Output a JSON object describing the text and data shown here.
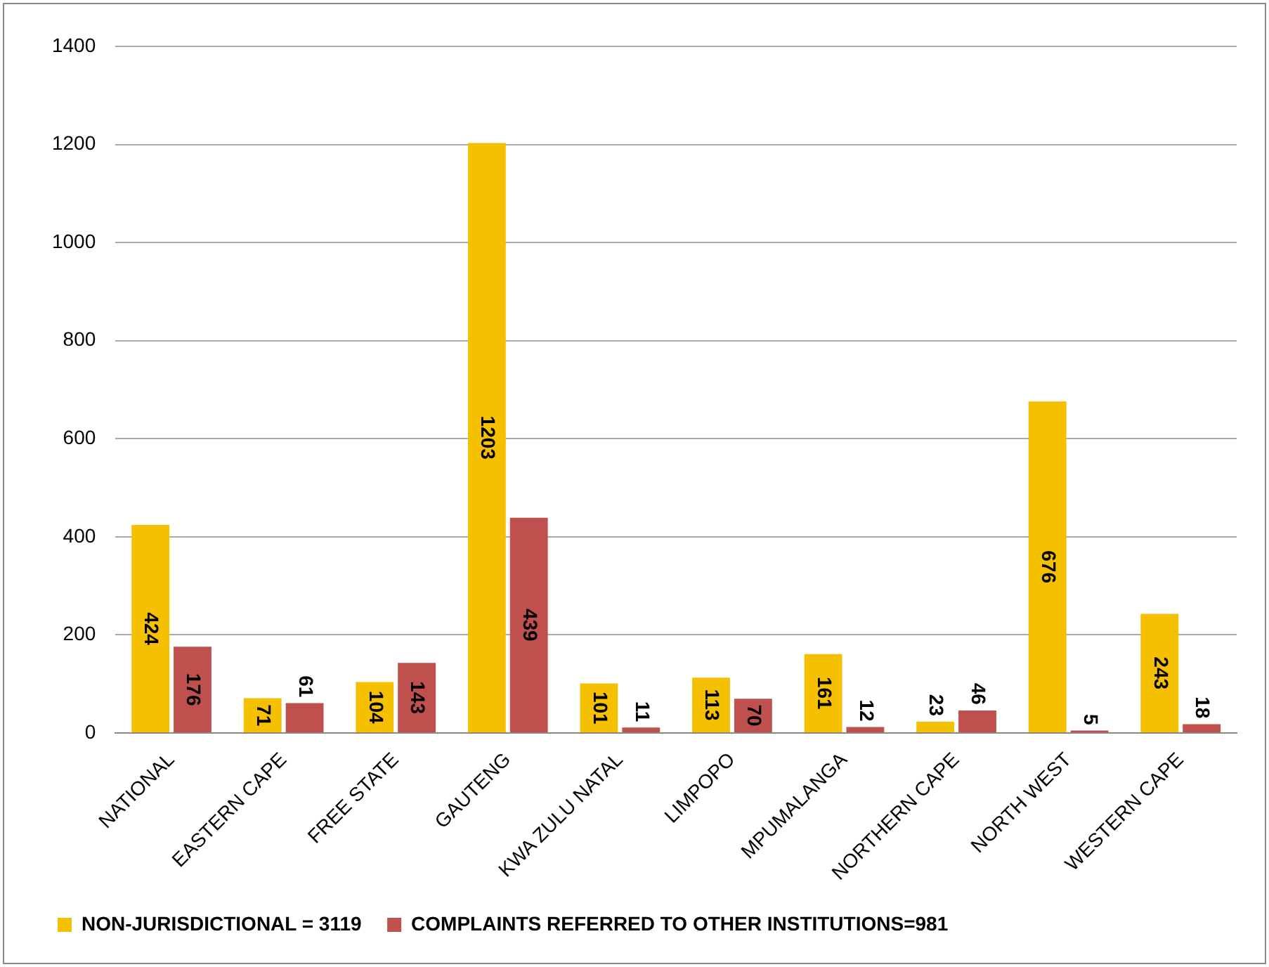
{
  "chart_data": {
    "type": "bar",
    "categories": [
      "NATIONAL",
      "EASTERN CAPE",
      "FREE STATE",
      "GAUTENG",
      "KWA ZULU NATAL",
      "LIMPOPO",
      "MPUMALANGA",
      "NORTHERN CAPE",
      "NORTH WEST",
      "WESTERN CAPE"
    ],
    "series": [
      {
        "name": "NON-JURISDICTIONAL = 3119",
        "color": "#f5c000",
        "values": [
          424,
          71,
          104,
          1203,
          101,
          113,
          161,
          23,
          676,
          243
        ]
      },
      {
        "name": "COMPLAINTS REFERRED TO OTHER INSTITUTIONS=981",
        "color": "#c0504d",
        "values": [
          176,
          61,
          143,
          439,
          11,
          70,
          12,
          46,
          5,
          18
        ]
      }
    ],
    "ylim": [
      0,
      1400
    ],
    "yticks": [
      0,
      200,
      400,
      600,
      800,
      1000,
      1200,
      1400
    ],
    "grid": "y",
    "legend": "bottom",
    "data_labels": true
  }
}
